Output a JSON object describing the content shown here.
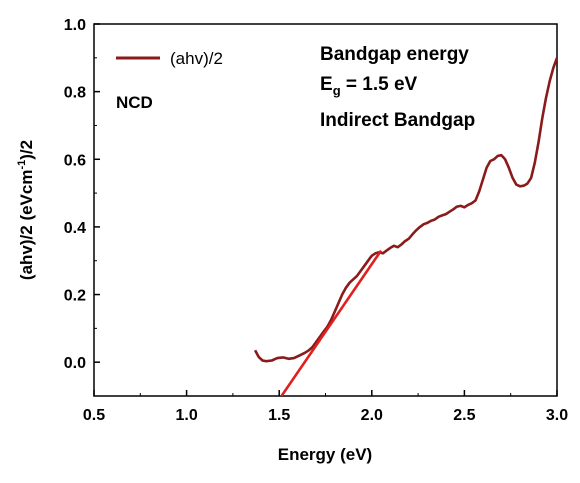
{
  "chart_data": {
    "type": "line",
    "xlabel": "Energy (eV)",
    "ylabel": {
      "text": "(ahv)/2 (eVcm",
      "sup": "-1",
      "suffix": ")/2"
    },
    "xlim": [
      0.5,
      3.0
    ],
    "ylim": [
      -0.1,
      1.0
    ],
    "xticks": [
      0.5,
      1.0,
      1.5,
      2.0,
      2.5,
      3.0
    ],
    "yticks": [
      0.0,
      0.2,
      0.4,
      0.6,
      0.8,
      1.0
    ],
    "xtick_labels": [
      "0.5",
      "1.0",
      "1.5",
      "2.0",
      "2.5",
      "3.0"
    ],
    "ytick_labels": [
      "0.0",
      "0.2",
      "0.4",
      "0.6",
      "0.8",
      "1.0"
    ],
    "grid": false,
    "legend": {
      "placement": "top-left",
      "entries": [
        {
          "label": "(ahv)/2",
          "color": "#8b1a1a"
        }
      ]
    },
    "annotations": {
      "sample": "NCD",
      "title": "Bandgap energy",
      "eg_main": "E",
      "eg_sub": "g",
      "eg_rest": " = 1.5 eV",
      "type": "Indirect Bandgap"
    },
    "series": [
      {
        "name": "(ahv)/2",
        "color": "#8b1a1a",
        "x": [
          1.37,
          1.39,
          1.41,
          1.43,
          1.46,
          1.49,
          1.52,
          1.55,
          1.58,
          1.61,
          1.64,
          1.66,
          1.68,
          1.7,
          1.72,
          1.74,
          1.76,
          1.78,
          1.8,
          1.82,
          1.84,
          1.86,
          1.88,
          1.9,
          1.92,
          1.94,
          1.96,
          1.98,
          2.0,
          2.02,
          2.04,
          2.06,
          2.08,
          2.1,
          2.12,
          2.14,
          2.16,
          2.18,
          2.2,
          2.22,
          2.24,
          2.26,
          2.28,
          2.3,
          2.32,
          2.34,
          2.36,
          2.38,
          2.4,
          2.42,
          2.44,
          2.46,
          2.48,
          2.5,
          2.52,
          2.54,
          2.56,
          2.58,
          2.6,
          2.62,
          2.64,
          2.66,
          2.68,
          2.7,
          2.72,
          2.74,
          2.76,
          2.78,
          2.8,
          2.82,
          2.84,
          2.86,
          2.88,
          2.9,
          2.92,
          2.94,
          2.96,
          2.98,
          3.0
        ],
        "y": [
          0.035,
          0.015,
          0.005,
          0.003,
          0.005,
          0.012,
          0.014,
          0.01,
          0.012,
          0.02,
          0.028,
          0.035,
          0.045,
          0.06,
          0.075,
          0.09,
          0.105,
          0.125,
          0.15,
          0.175,
          0.2,
          0.22,
          0.235,
          0.245,
          0.255,
          0.27,
          0.285,
          0.3,
          0.315,
          0.322,
          0.325,
          0.322,
          0.33,
          0.338,
          0.344,
          0.34,
          0.348,
          0.358,
          0.365,
          0.378,
          0.39,
          0.4,
          0.408,
          0.412,
          0.418,
          0.422,
          0.43,
          0.434,
          0.438,
          0.445,
          0.452,
          0.46,
          0.462,
          0.458,
          0.465,
          0.47,
          0.478,
          0.505,
          0.54,
          0.575,
          0.595,
          0.6,
          0.61,
          0.612,
          0.6,
          0.575,
          0.545,
          0.525,
          0.52,
          0.522,
          0.528,
          0.545,
          0.59,
          0.65,
          0.72,
          0.78,
          0.83,
          0.87,
          0.9
        ]
      }
    ],
    "fit_line": {
      "color": "#e02020",
      "x": [
        1.5,
        2.05
      ],
      "y": [
        -0.11,
        0.33
      ]
    }
  }
}
